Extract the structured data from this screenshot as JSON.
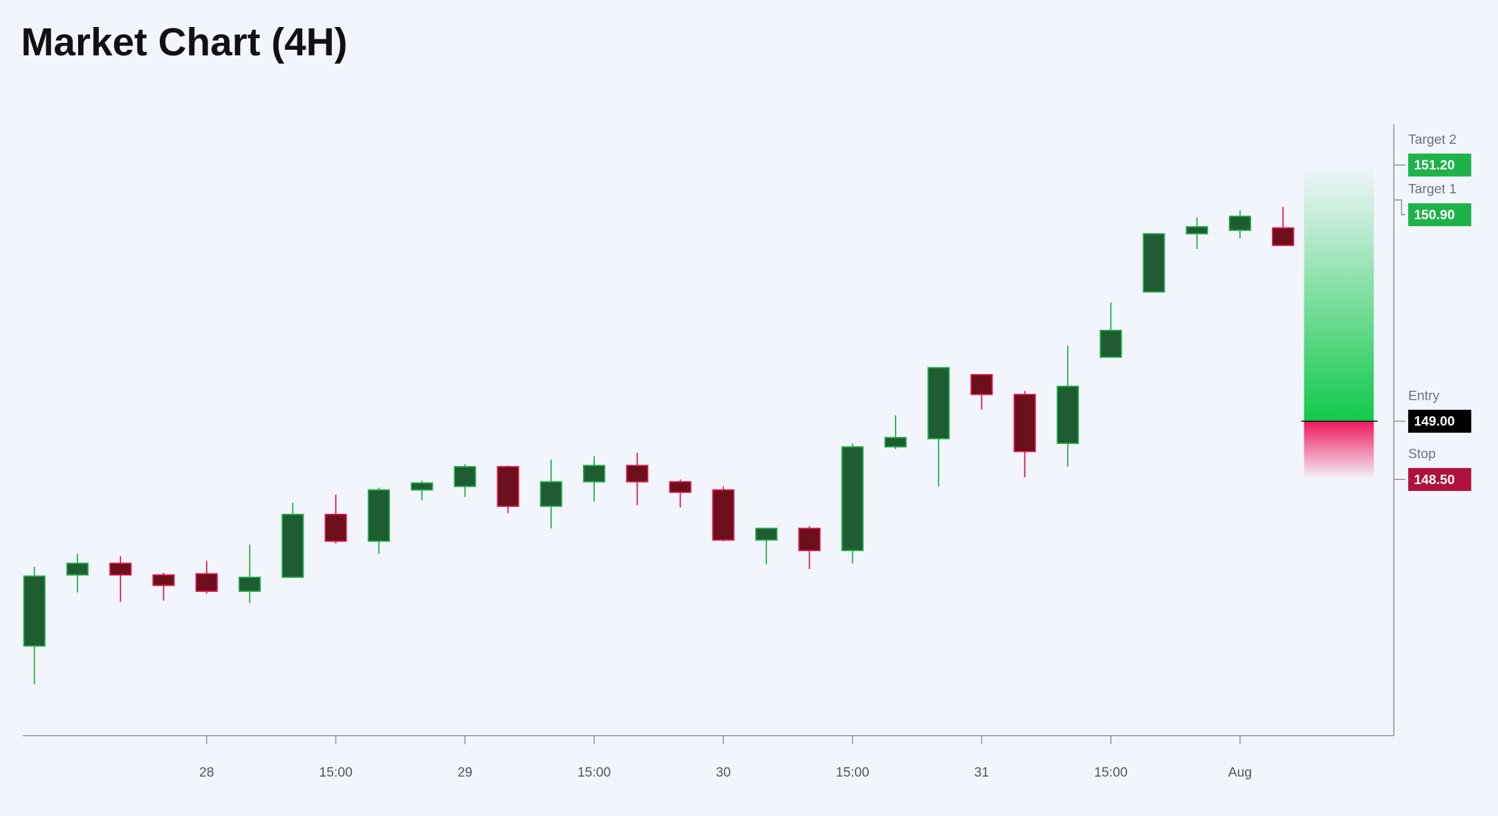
{
  "chart_data": {
    "type": "candlestick",
    "title": "Market Chart (4H)",
    "categories": [
      null,
      null,
      null,
      null,
      "28",
      null,
      null,
      "15:00",
      null,
      null,
      "29",
      null,
      null,
      "15:00",
      null,
      null,
      "30",
      null,
      null,
      "15:00",
      null,
      null,
      "31",
      null,
      null,
      "15:00",
      null,
      null,
      "Aug",
      null
    ],
    "open": [
      147.07,
      147.68,
      147.78,
      147.68,
      147.69,
      147.54,
      147.66,
      148.2,
      147.97,
      148.41,
      148.44,
      148.61,
      148.27,
      148.48,
      148.62,
      148.48,
      148.41,
      147.98,
      148.08,
      147.89,
      148.78,
      148.85,
      149.4,
      149.23,
      148.81,
      149.55,
      150.11,
      150.61,
      150.64,
      150.66
    ],
    "high": [
      147.75,
      147.86,
      147.84,
      147.7,
      147.8,
      147.94,
      148.3,
      148.37,
      148.43,
      148.49,
      148.63,
      148.62,
      148.67,
      148.7,
      148.73,
      148.5,
      148.44,
      148.08,
      148.1,
      148.81,
      149.05,
      149.46,
      149.4,
      149.26,
      149.65,
      150.02,
      150.61,
      150.75,
      150.81,
      150.84
    ],
    "low": [
      146.74,
      147.53,
      147.45,
      147.46,
      147.52,
      147.44,
      147.66,
      147.95,
      147.86,
      148.32,
      148.35,
      148.21,
      148.08,
      148.31,
      148.28,
      148.26,
      147.97,
      147.77,
      147.73,
      147.78,
      148.76,
      148.44,
      149.1,
      148.52,
      148.61,
      149.55,
      150.11,
      150.48,
      150.57,
      150.51
    ],
    "close": [
      147.67,
      147.78,
      147.68,
      147.59,
      147.54,
      147.66,
      148.2,
      147.97,
      148.41,
      148.47,
      148.61,
      148.27,
      148.48,
      148.62,
      148.48,
      148.39,
      147.98,
      148.08,
      147.89,
      148.78,
      148.86,
      149.46,
      149.23,
      148.74,
      149.3,
      149.78,
      150.61,
      150.67,
      150.76,
      150.51
    ],
    "up_color": "#1f5c32",
    "up_border": "#22b04a",
    "down_color": "#6b0f1a",
    "down_border": "#e0174f",
    "ylim": [
      146.3,
      151.55
    ],
    "levels": [
      {
        "name": "Target 2",
        "value": 151.2,
        "label": "151.20",
        "color": "#1db34a"
      },
      {
        "name": "Target 1",
        "value": 150.9,
        "label": "150.90",
        "color": "#1db34a"
      },
      {
        "name": "Entry",
        "value": 149.0,
        "label": "149.00",
        "color": "#000000"
      },
      {
        "name": "Stop",
        "value": 148.5,
        "label": "148.50",
        "color": "#b0103c"
      }
    ]
  }
}
